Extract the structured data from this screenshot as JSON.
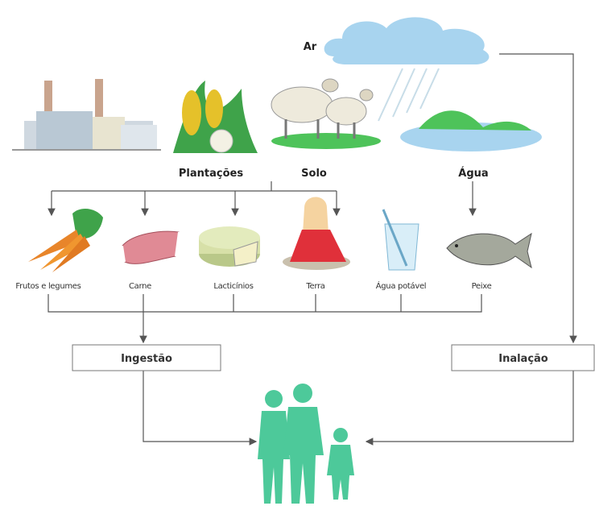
{
  "sources": {
    "air": "Ar",
    "crops": "Plantações",
    "soil": "Solo",
    "water": "Água"
  },
  "exposures": [
    "Frutos e legumes",
    "Carne",
    "Lacticínios",
    "Terra",
    "Água potável",
    "Peixe"
  ],
  "routes": {
    "ingestion": "Ingestão",
    "inhalation": "Inalação"
  }
}
